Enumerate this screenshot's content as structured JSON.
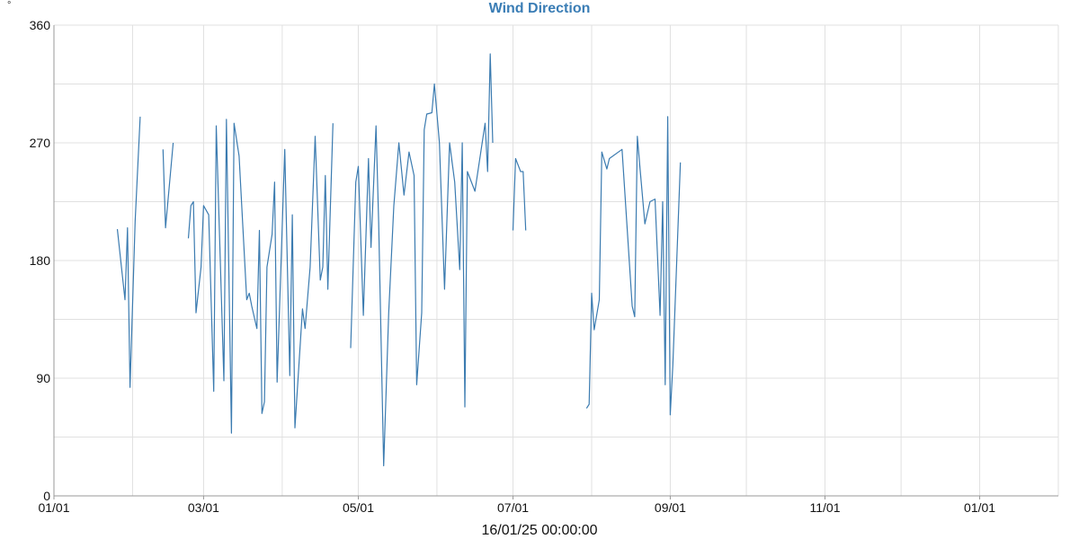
{
  "colors": {
    "line": "#3b7bb0",
    "title": "#3a7db5",
    "grid": "#e0e0e0",
    "axis": "#999999"
  },
  "chart_data": {
    "type": "line",
    "title": "Wind Direction",
    "y_unit": "°",
    "ylim": [
      0,
      360
    ],
    "y_ticks": [
      0,
      90,
      180,
      270,
      360
    ],
    "grid": true,
    "x_range": [
      "2025-01-01",
      "2026-02-01"
    ],
    "x_tick_labels": [
      "01/01",
      "03/01",
      "05/01",
      "07/01",
      "09/01",
      "11/01",
      "01/01"
    ],
    "x_tick_dates": [
      "2025-01-01",
      "2025-03-01",
      "2025-05-01",
      "2025-07-01",
      "2025-09-01",
      "2025-11-01",
      "2026-01-01"
    ],
    "x_grid_dates": [
      "2025-01-01",
      "2025-02-01",
      "2025-03-01",
      "2025-04-01",
      "2025-05-01",
      "2025-06-01",
      "2025-07-01",
      "2025-08-01",
      "2025-09-01",
      "2025-10-01",
      "2025-11-01",
      "2025-12-01",
      "2026-01-01",
      "2026-02-01"
    ],
    "footer_label": "16/01/25 00:00:00",
    "series": [
      {
        "segments": [
          [
            [
              "2025-01-26",
              204
            ],
            [
              "2025-01-29",
              150
            ],
            [
              "2025-01-30",
              205
            ],
            [
              "2025-01-31",
              83
            ],
            [
              "2025-02-02",
              210
            ],
            [
              "2025-02-04",
              290
            ]
          ],
          [
            [
              "2025-02-13",
              265
            ],
            [
              "2025-02-14",
              205
            ],
            [
              "2025-02-17",
              270
            ]
          ],
          [
            [
              "2025-02-23",
              197
            ],
            [
              "2025-02-24",
              222
            ],
            [
              "2025-02-25",
              225
            ],
            [
              "2025-02-26",
              140
            ],
            [
              "2025-02-28",
              175
            ],
            [
              "2025-03-01",
              222
            ],
            [
              "2025-03-03",
              215
            ],
            [
              "2025-03-05",
              80
            ],
            [
              "2025-03-06",
              283
            ],
            [
              "2025-03-09",
              88
            ],
            [
              "2025-03-10",
              288
            ],
            [
              "2025-03-12",
              48
            ],
            [
              "2025-03-13",
              285
            ],
            [
              "2025-03-15",
              260
            ],
            [
              "2025-03-18",
              150
            ],
            [
              "2025-03-19",
              155
            ],
            [
              "2025-03-20",
              145
            ],
            [
              "2025-03-22",
              128
            ],
            [
              "2025-03-23",
              203
            ],
            [
              "2025-03-24",
              63
            ],
            [
              "2025-03-25",
              72
            ],
            [
              "2025-03-26",
              175
            ],
            [
              "2025-03-28",
              200
            ],
            [
              "2025-03-29",
              240
            ],
            [
              "2025-03-30",
              87
            ],
            [
              "2025-04-02",
              265
            ],
            [
              "2025-04-04",
              92
            ],
            [
              "2025-04-05",
              215
            ],
            [
              "2025-04-06",
              52
            ],
            [
              "2025-04-09",
              143
            ],
            [
              "2025-04-10",
              128
            ],
            [
              "2025-04-12",
              175
            ],
            [
              "2025-04-14",
              275
            ],
            [
              "2025-04-16",
              165
            ],
            [
              "2025-04-17",
              175
            ],
            [
              "2025-04-18",
              245
            ],
            [
              "2025-04-19",
              158
            ],
            [
              "2025-04-21",
              285
            ]
          ]
        ],
        "segments_b": [
          [
            [
              "2025-04-28",
              113
            ],
            [
              "2025-04-30",
              240
            ],
            [
              "2025-05-01",
              252
            ],
            [
              "2025-05-03",
              138
            ],
            [
              "2025-05-05",
              258
            ],
            [
              "2025-05-06",
              190
            ],
            [
              "2025-05-08",
              283
            ],
            [
              "2025-05-09",
              210
            ],
            [
              "2025-05-11",
              23
            ],
            [
              "2025-05-13",
              140
            ],
            [
              "2025-05-15",
              222
            ],
            [
              "2025-05-17",
              270
            ],
            [
              "2025-05-19",
              230
            ],
            [
              "2025-05-21",
              263
            ],
            [
              "2025-05-23",
              245
            ],
            [
              "2025-05-24",
              85
            ],
            [
              "2025-05-26",
              140
            ],
            [
              "2025-05-27",
              280
            ],
            [
              "2025-05-28",
              292
            ],
            [
              "2025-05-30",
              293
            ],
            [
              "2025-05-31",
              315
            ],
            [
              "2025-06-02",
              270
            ],
            [
              "2025-06-04",
              158
            ],
            [
              "2025-06-06",
              270
            ],
            [
              "2025-06-08",
              240
            ],
            [
              "2025-06-10",
              173
            ],
            [
              "2025-06-11",
              270
            ],
            [
              "2025-06-12",
              68
            ],
            [
              "2025-06-13",
              248
            ],
            [
              "2025-06-16",
              233
            ],
            [
              "2025-06-20",
              285
            ],
            [
              "2025-06-21",
              248
            ],
            [
              "2025-06-22",
              338
            ],
            [
              "2025-06-23",
              270
            ]
          ],
          [
            [
              "2025-07-01",
              203
            ],
            [
              "2025-07-02",
              258
            ],
            [
              "2025-07-04",
              248
            ],
            [
              "2025-07-05",
              248
            ],
            [
              "2025-07-06",
              203
            ]
          ],
          [
            [
              "2025-07-30",
              67
            ],
            [
              "2025-07-31",
              70
            ],
            [
              "2025-08-01",
              155
            ],
            [
              "2025-08-02",
              127
            ],
            [
              "2025-08-04",
              150
            ],
            [
              "2025-08-05",
              263
            ],
            [
              "2025-08-07",
              250
            ],
            [
              "2025-08-08",
              258
            ],
            [
              "2025-08-13",
              265
            ],
            [
              "2025-08-17",
              145
            ],
            [
              "2025-08-18",
              137
            ],
            [
              "2025-08-19",
              275
            ],
            [
              "2025-08-20",
              252
            ],
            [
              "2025-08-22",
              208
            ],
            [
              "2025-08-24",
              225
            ],
            [
              "2025-08-26",
              227
            ],
            [
              "2025-08-28",
              138
            ],
            [
              "2025-08-29",
              225
            ],
            [
              "2025-08-30",
              85
            ],
            [
              "2025-08-31",
              290
            ],
            [
              "2025-09-01",
              62
            ],
            [
              "2025-09-02",
              100
            ],
            [
              "2025-09-05",
              255
            ]
          ]
        ]
      }
    ]
  }
}
